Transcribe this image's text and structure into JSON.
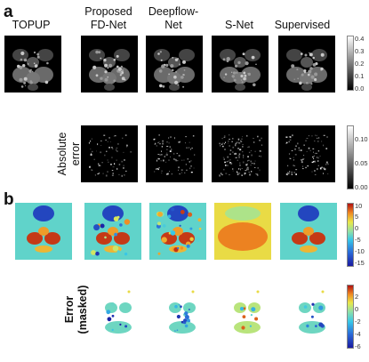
{
  "panels": {
    "a": {
      "letter": "a",
      "columns": [
        "TOPUP",
        "Proposed\nFD-Net",
        "Deepflow-\nNet",
        "S-Net",
        "Supervised"
      ],
      "row2_label": "Absolute\nerror",
      "colorbar1_ticks": [
        "0.4",
        "0.3",
        "0.2",
        "0.1",
        "0.0"
      ],
      "colorbar2_ticks": [
        "0.10",
        "0.05",
        "0.00"
      ]
    },
    "b": {
      "letter": "b",
      "row2_label": "Error\n(masked)",
      "colorbar1_ticks": [
        "10",
        "5",
        "0",
        "-5",
        "-10",
        "-15"
      ],
      "colorbar2_ticks": [
        "2",
        "0",
        "-2",
        "-4",
        "-6"
      ]
    }
  }
}
